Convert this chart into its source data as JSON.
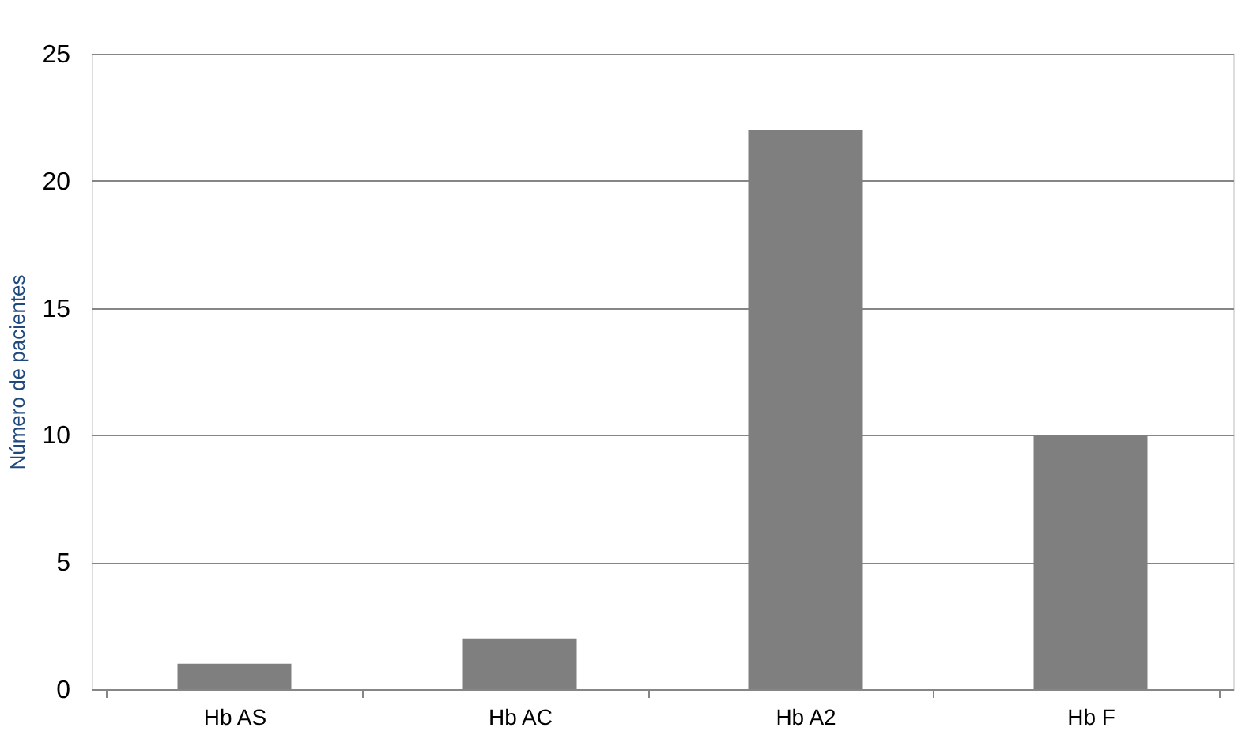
{
  "chart_data": {
    "type": "bar",
    "ylabel": "Número de pacientes",
    "categories": [
      "Hb AS",
      "Hb AC",
      "Hb A2",
      "Hb F"
    ],
    "values": [
      1,
      2,
      22,
      10
    ],
    "color": "#7f7f7f",
    "ylim": [
      0,
      25
    ],
    "yticks": [
      0,
      5,
      10,
      15,
      20,
      25
    ],
    "grid": "y",
    "legend": false
  }
}
